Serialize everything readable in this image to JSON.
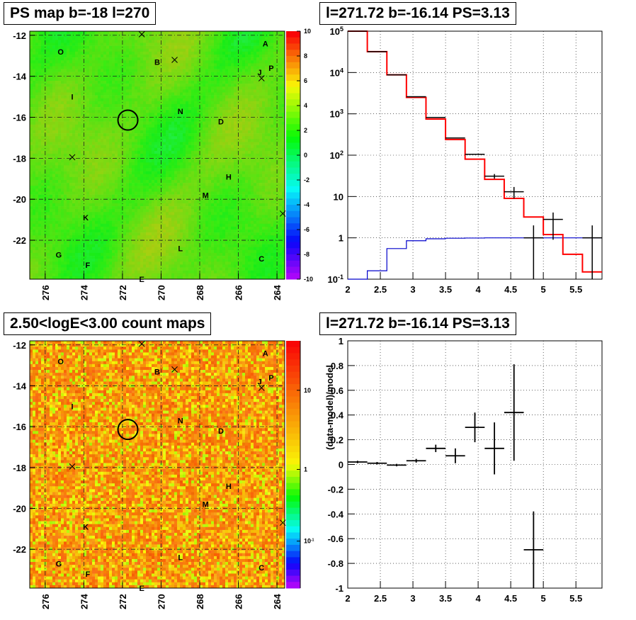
{
  "panels": {
    "ps_map": {
      "title": "PS map b=-18 l=270"
    },
    "spectrum": {
      "title": "l=271.72 b=-16.14 PS=3.13"
    },
    "count_map": {
      "title": "2.50<logE<3.00 count maps"
    },
    "residual": {
      "title": "l=271.72 b=-16.14 PS=3.13"
    }
  },
  "colors": {
    "data": "#000000",
    "model": "#ff0000",
    "background_model": "#0000cc"
  },
  "chart_data": [
    {
      "type": "heatmap",
      "title": "PS map b=-18 l=270",
      "x_ticks": [
        "276",
        "274",
        "272",
        "270",
        "268",
        "266",
        "264"
      ],
      "y_ticks": [
        "-12",
        "-14",
        "-16",
        "-18",
        "-20",
        "-22"
      ],
      "xlim": [
        276.8,
        263.6
      ],
      "ylim": [
        -23.9,
        -11.8
      ],
      "colorbar": {
        "range": [
          -10,
          10
        ],
        "ticks": [
          "10",
          "8",
          "6",
          "4",
          "2",
          "0",
          "-2",
          "-4",
          "-6",
          "-8",
          "-10"
        ]
      },
      "marked_source": {
        "l": 271.72,
        "b": -16.14
      },
      "region_labels": [
        {
          "text": "O",
          "l": 275.2,
          "b": -12.8
        },
        {
          "text": "A",
          "l": 264.6,
          "b": -12.4
        },
        {
          "text": "B",
          "l": 270.2,
          "b": -13.3
        },
        {
          "text": "J",
          "l": 264.9,
          "b": -13.8
        },
        {
          "text": "P",
          "l": 264.3,
          "b": -13.6
        },
        {
          "text": "I",
          "l": 274.6,
          "b": -15.0
        },
        {
          "text": "N",
          "l": 269.0,
          "b": -15.7
        },
        {
          "text": "D",
          "l": 266.9,
          "b": -16.2
        },
        {
          "text": "H",
          "l": 266.5,
          "b": -18.9
        },
        {
          "text": "M",
          "l": 267.7,
          "b": -19.8
        },
        {
          "text": "K",
          "l": 273.9,
          "b": -20.9
        },
        {
          "text": "G",
          "l": 275.3,
          "b": -22.7
        },
        {
          "text": "L",
          "l": 269.0,
          "b": -22.4
        },
        {
          "text": "C",
          "l": 264.8,
          "b": -22.9
        },
        {
          "text": "F",
          "l": 273.8,
          "b": -23.2
        },
        {
          "text": "E",
          "l": 271.0,
          "b": -23.9
        }
      ],
      "cross_markers": [
        {
          "l": 271.0,
          "b": -11.95
        },
        {
          "l": 269.3,
          "b": -13.2
        },
        {
          "l": 264.8,
          "b": -14.1
        },
        {
          "l": 274.6,
          "b": -17.95
        },
        {
          "l": 263.7,
          "b": -20.7
        }
      ]
    },
    {
      "type": "line",
      "title": "l=271.72 b=-16.14 PS=3.13",
      "xlim": [
        2,
        5.9
      ],
      "ylim": [
        0.1,
        100000
      ],
      "y_scale": "log",
      "x_ticks": [
        "2",
        "2.5",
        "3",
        "3.5",
        "4",
        "4.5",
        "5",
        "5.5"
      ],
      "y_ticks": [
        "10^-1",
        "1",
        "10",
        "10^2",
        "10^3",
        "10^4",
        "10^5"
      ],
      "bin_edges": [
        2.0,
        2.3,
        2.6,
        2.9,
        3.2,
        3.5,
        3.8,
        4.1,
        4.4,
        4.7,
        5.0,
        5.3,
        5.6,
        5.9
      ],
      "series": [
        {
          "values": [
            100000,
            32000,
            8800,
            2500,
            750,
            240,
            80,
            26,
            9,
            3.2,
            1.2,
            0.4,
            0.15
          ]
        },
        {
          "values": [
            0.1,
            0.16,
            0.55,
            0.85,
            0.95,
            0.98,
            0.99,
            1.0,
            1.0,
            1.0,
            1.0,
            1.0,
            1.0
          ]
        },
        {
          "values": [
            100000,
            32000,
            8800,
            2600,
            820,
            260,
            105,
            31,
            13,
            1.0,
            2.8,
            0,
            1.0
          ],
          "err_lo": [
            0,
            0,
            0,
            0,
            0,
            0,
            0,
            4,
            4.0,
            0.97,
            1.9,
            0,
            0.97
          ],
          "err_hi": [
            0,
            0,
            0,
            0,
            0,
            0,
            0,
            4,
            4.0,
            1.0,
            1.3,
            0,
            1.0
          ]
        }
      ]
    },
    {
      "type": "heatmap",
      "title": "2.50<logE<3.00 count maps",
      "x_ticks": [
        "276",
        "274",
        "272",
        "270",
        "268",
        "266",
        "264"
      ],
      "y_ticks": [
        "-12",
        "-14",
        "-16",
        "-18",
        "-20",
        "-22"
      ],
      "colorbar": {
        "scale": "log",
        "ticks": [
          "10",
          "1",
          "10^-1"
        ]
      }
    },
    {
      "type": "scatter",
      "title": "l=271.72 b=-16.14 PS=3.13",
      "ylabel": "(data-model)/model",
      "xlim": [
        2,
        5.9
      ],
      "ylim": [
        -1,
        1
      ],
      "x_ticks": [
        "2",
        "2.5",
        "3",
        "3.5",
        "4",
        "4.5",
        "5",
        "5.5"
      ],
      "y_ticks": [
        "1",
        "0.8",
        "0.6",
        "0.4",
        "0.2",
        "0",
        "-0.2",
        "-0.4",
        "-0.6",
        "-0.8",
        "-1"
      ],
      "x": [
        2.15,
        2.45,
        2.75,
        3.05,
        3.35,
        3.65,
        3.95,
        4.25,
        4.55,
        4.85
      ],
      "y": [
        0.02,
        0.01,
        -0.005,
        0.03,
        0.13,
        0.07,
        0.3,
        0.13,
        0.42,
        -0.69
      ],
      "yerr": [
        0.01,
        0.01,
        0.01,
        0.015,
        0.03,
        0.06,
        0.12,
        0.21,
        0.39,
        0.31
      ],
      "xerr": 0.15
    }
  ]
}
